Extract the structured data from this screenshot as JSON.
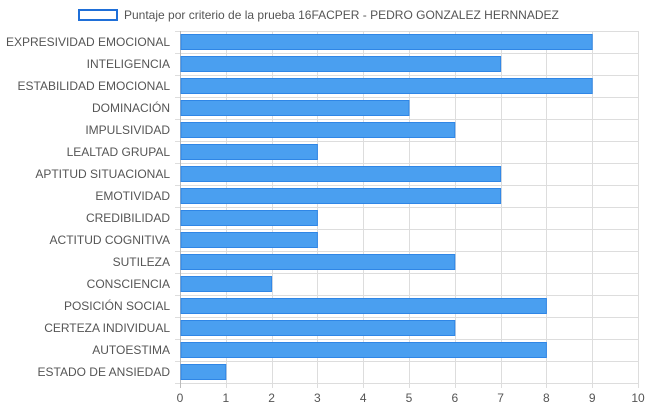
{
  "chart_data": {
    "type": "bar",
    "orientation": "horizontal",
    "categories": [
      "EXPRESIVIDAD EMOCIONAL",
      "INTELIGENCIA",
      "ESTABILIDAD EMOCIONAL",
      "DOMINACIÓN",
      "IMPULSIVIDAD",
      "LEALTAD GRUPAL",
      "APTITUD SITUACIONAL",
      "EMOTIVIDAD",
      "CREDIBILIDAD",
      "ACTITUD COGNITIVA",
      "SUTILEZA",
      "CONSCIENCIA",
      "POSICIÓN SOCIAL",
      "CERTEZA INDIVIDUAL",
      "AUTOESTIMA",
      "ESTADO DE ANSIEDAD"
    ],
    "series": [
      {
        "name": "Puntaje por criterio de la prueba 16FACPER - PEDRO GONZALEZ HERNNADEZ",
        "values": [
          9,
          7,
          9,
          5,
          6,
          3,
          7,
          7,
          3,
          3,
          6,
          2,
          8,
          6,
          8,
          1
        ]
      }
    ],
    "xlim": [
      0,
      10
    ],
    "xticks": [
      "0",
      "1",
      "2",
      "3",
      "4",
      "5",
      "6",
      "7",
      "8",
      "9",
      "10"
    ],
    "grid": true,
    "legend_position": "top",
    "colors": {
      "bar_fill": "#4a9ff0",
      "bar_border": "#2f86e6",
      "legend_border": "#1f6fd8",
      "grid": "#dddddd",
      "tick_text": "#555555"
    }
  }
}
